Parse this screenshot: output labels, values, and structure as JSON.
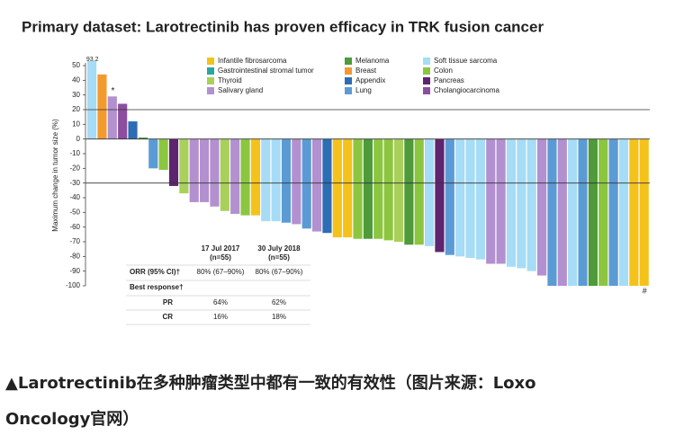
{
  "chart_data": {
    "type": "waterfall",
    "title": "Primary dataset: Larotrectinib has proven efficacy in TRK fusion cancer",
    "y_label": "Maximum change in tumor size (%)",
    "ylim": [
      -100,
      50
    ],
    "yticks": [
      50,
      40,
      30,
      20,
      10,
      0,
      -10,
      -20,
      -30,
      -40,
      -50,
      -60,
      -70,
      -80,
      -90,
      -100
    ],
    "reference_lines": [
      20,
      -30
    ],
    "legend": [
      {
        "name": "Infantile fibrosarcoma",
        "color": "#f5c21b"
      },
      {
        "name": "Gastrointestinal stromal tumor",
        "color": "#2aa6a0"
      },
      {
        "name": "Thyroid",
        "color": "#a9d05a"
      },
      {
        "name": "Salivary gland",
        "color": "#b390cf"
      },
      {
        "name": "Melanoma",
        "color": "#4f9a3a"
      },
      {
        "name": "Breast",
        "color": "#f39a2f"
      },
      {
        "name": "Appendix",
        "color": "#2c6db4"
      },
      {
        "name": "Lung",
        "color": "#5b9bd5"
      },
      {
        "name": "Soft tissue sarcoma",
        "color": "#a6dcf6"
      },
      {
        "name": "Colon",
        "color": "#8cc640"
      },
      {
        "name": "Pancreas",
        "color": "#5e2470"
      },
      {
        "name": "Cholangiocarcinoma",
        "color": "#8b4f9e"
      }
    ],
    "values": [
      93.2,
      44,
      29,
      24,
      12,
      1,
      -20,
      -21,
      -32,
      -37,
      -43,
      -43,
      -46,
      -49,
      -51,
      -52,
      -52,
      -56,
      -56,
      -57,
      -58,
      -61,
      -63,
      -64,
      -67,
      -67,
      -68,
      -68,
      -68,
      -69,
      -70,
      -72,
      -72,
      -73,
      -77,
      -79,
      -80,
      -81,
      -82,
      -85,
      -85,
      -87,
      -88,
      -90,
      -93,
      -100,
      -100,
      -100,
      -100,
      -100,
      -100,
      -100,
      -100,
      -100,
      -100
    ],
    "value_labels": [
      "93.2",
      null,
      null,
      null,
      null,
      null,
      null,
      null,
      null,
      null,
      null,
      null,
      null,
      null,
      null,
      null,
      null,
      null,
      null,
      null,
      null,
      null,
      null,
      null,
      null,
      null,
      null,
      null,
      null,
      null,
      null,
      null,
      null,
      null,
      null,
      null,
      null,
      null,
      null,
      null,
      null,
      null,
      null,
      null,
      null,
      null,
      null,
      null,
      null,
      null,
      null,
      null,
      null,
      null,
      null
    ],
    "colors": [
      "#a6dcf6",
      "#f39a2f",
      "#b390cf",
      "#8b4f9e",
      "#2c6db4",
      "#4f9a3a",
      "#5b9bd5",
      "#8cc640",
      "#5e2470",
      "#a9d05a",
      "#b390cf",
      "#b390cf",
      "#b390cf",
      "#a9d05a",
      "#b390cf",
      "#8cc640",
      "#f5c21b",
      "#a6dcf6",
      "#a6dcf6",
      "#5b9bd5",
      "#b390cf",
      "#5b9bd5",
      "#b390cf",
      "#2c6db4",
      "#f5c21b",
      "#f5c21b",
      "#8cc640",
      "#4f9a3a",
      "#8cc640",
      "#8cc640",
      "#a9d05a",
      "#4f9a3a",
      "#8cc640",
      "#a6dcf6",
      "#5e2470",
      "#5b9bd5",
      "#a6dcf6",
      "#a6dcf6",
      "#a6dcf6",
      "#b390cf",
      "#b390cf",
      "#a6dcf6",
      "#a6dcf6",
      "#a6dcf6",
      "#b390cf",
      "#5b9bd5",
      "#b390cf",
      "#a6dcf6",
      "#5b9bd5",
      "#4f9a3a",
      "#8cc640",
      "#5b9bd5",
      "#a6dcf6",
      "#f5c21b",
      "#f5c21b"
    ],
    "annotations": {
      "star": "*",
      "hash": "#"
    },
    "table": {
      "header": [
        "17 Jul 2017",
        "30 July 2018"
      ],
      "subheader": [
        "(n=55)",
        "(n=55)"
      ],
      "rows": [
        [
          "ORR (95% CI)†",
          "80% (67–90%)",
          "80% (67–90%)"
        ],
        [
          "Best response†",
          "",
          ""
        ],
        [
          "PR",
          "64%",
          "62%"
        ],
        [
          "CR",
          "16%",
          "18%"
        ]
      ]
    }
  },
  "caption": {
    "line1": "▲Larotrectinib在多种肿瘤类型中都有一致的有效性（图片来源：Loxo",
    "line2": "Oncology官网）"
  }
}
